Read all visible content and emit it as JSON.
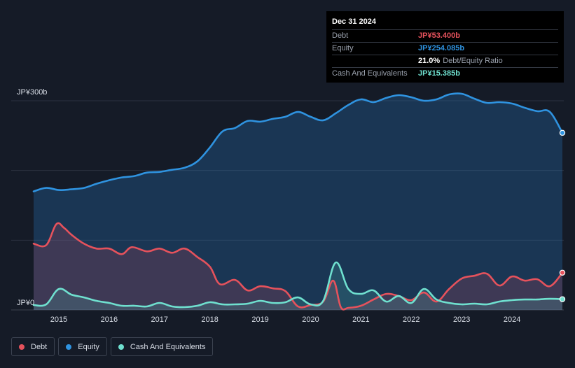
{
  "tooltip": {
    "date": "Dec 31 2024",
    "rows": [
      {
        "label": "Debt",
        "value": "JP¥53.400b",
        "color": "#e5525c"
      },
      {
        "label": "Equity",
        "value": "JP¥254.085b",
        "color": "#2f93e0"
      },
      {
        "label": "Cash And Equivalents",
        "value": "JP¥15.385b",
        "color": "#6fe0cf"
      }
    ],
    "ratio_value": "21.0%",
    "ratio_label": "Debt/Equity Ratio"
  },
  "legend": [
    {
      "label": "Debt",
      "color": "#e5525c"
    },
    {
      "label": "Equity",
      "color": "#2f93e0"
    },
    {
      "label": "Cash And Equivalents",
      "color": "#6fe0cf"
    }
  ],
  "chart_data": {
    "type": "area",
    "y_top_label": "JP¥300b",
    "y_bottom_label": "JP¥0",
    "ylim": [
      0,
      300
    ],
    "xlim": [
      2014.5,
      2025.0
    ],
    "x_ticks": [
      "2015",
      "2016",
      "2017",
      "2018",
      "2019",
      "2020",
      "2021",
      "2022",
      "2023",
      "2024"
    ],
    "series": [
      {
        "name": "Equity",
        "color": "#2f93e0",
        "x": [
          2014.5,
          2014.75,
          2015.0,
          2015.25,
          2015.5,
          2015.75,
          2016.0,
          2016.25,
          2016.5,
          2016.75,
          2017.0,
          2017.25,
          2017.5,
          2017.75,
          2018.0,
          2018.25,
          2018.5,
          2018.75,
          2019.0,
          2019.25,
          2019.5,
          2019.75,
          2020.0,
          2020.25,
          2020.5,
          2020.75,
          2021.0,
          2021.25,
          2021.5,
          2021.75,
          2022.0,
          2022.25,
          2022.5,
          2022.75,
          2023.0,
          2023.25,
          2023.5,
          2023.75,
          2024.0,
          2024.25,
          2024.5,
          2024.75,
          2025.0
        ],
        "values": [
          170,
          175,
          172,
          173,
          175,
          181,
          186,
          190,
          192,
          197,
          198,
          201,
          204,
          213,
          233,
          256,
          261,
          271,
          270,
          274,
          277,
          284,
          277,
          272,
          282,
          294,
          302,
          298,
          304,
          308,
          305,
          300,
          302,
          309,
          310,
          303,
          297,
          298,
          296,
          290,
          285,
          284,
          254
        ]
      },
      {
        "name": "Debt",
        "color": "#e5525c",
        "x": [
          2014.5,
          2014.75,
          2014.95,
          2015.1,
          2015.25,
          2015.5,
          2015.75,
          2016.0,
          2016.25,
          2016.45,
          2016.75,
          2017.0,
          2017.25,
          2017.5,
          2017.75,
          2018.0,
          2018.2,
          2018.5,
          2018.75,
          2019.0,
          2019.25,
          2019.5,
          2019.75,
          2020.0,
          2020.25,
          2020.45,
          2020.6,
          2020.75,
          2021.0,
          2021.25,
          2021.5,
          2021.75,
          2022.0,
          2022.25,
          2022.5,
          2022.75,
          2023.0,
          2023.25,
          2023.5,
          2023.75,
          2024.0,
          2024.25,
          2024.5,
          2024.75,
          2025.0
        ],
        "values": [
          95,
          93,
          123,
          118,
          108,
          95,
          88,
          88,
          80,
          90,
          84,
          88,
          82,
          88,
          76,
          62,
          37,
          43,
          28,
          34,
          31,
          27,
          5,
          7,
          12,
          42,
          4,
          3,
          6,
          15,
          23,
          20,
          14,
          25,
          12,
          30,
          45,
          49,
          52,
          35,
          48,
          42,
          44,
          34,
          53.4
        ]
      },
      {
        "name": "Cash And Equivalents",
        "color": "#6fe0cf",
        "x": [
          2014.5,
          2014.75,
          2015.0,
          2015.25,
          2015.5,
          2015.75,
          2016.0,
          2016.25,
          2016.5,
          2016.75,
          2017.0,
          2017.25,
          2017.5,
          2017.75,
          2018.0,
          2018.25,
          2018.5,
          2018.75,
          2019.0,
          2019.25,
          2019.5,
          2019.75,
          2020.0,
          2020.25,
          2020.5,
          2020.75,
          2021.0,
          2021.25,
          2021.5,
          2021.75,
          2022.0,
          2022.25,
          2022.5,
          2022.75,
          2023.0,
          2023.25,
          2023.5,
          2023.75,
          2024.0,
          2024.25,
          2024.5,
          2024.75,
          2025.0
        ],
        "values": [
          7,
          8,
          30,
          22,
          18,
          13,
          10,
          6,
          6,
          5,
          10,
          5,
          4,
          6,
          11,
          8,
          8,
          9,
          13,
          10,
          11,
          18,
          8,
          13,
          68,
          30,
          23,
          28,
          12,
          20,
          10,
          30,
          15,
          10,
          8,
          9,
          8,
          12,
          14,
          15,
          15,
          16,
          15.4
        ]
      }
    ]
  }
}
